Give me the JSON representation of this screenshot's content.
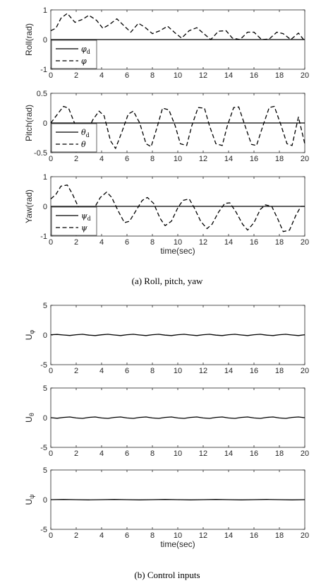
{
  "figure": {
    "caption_a": "(a)  Roll,  pitch,  yaw",
    "caption_b": "(b)  Control  inputs"
  },
  "chart_data": [
    {
      "type": "line",
      "id": "roll",
      "ylabel": "Roll(rad)",
      "xlabel": "",
      "xlim": [
        0,
        20
      ],
      "ylim": [
        -1,
        1
      ],
      "xticks": [
        "0",
        "2",
        "4",
        "6",
        "8",
        "10",
        "12",
        "14",
        "16",
        "18",
        "20"
      ],
      "yticks": [
        "-1",
        "0",
        "1"
      ],
      "legend": {
        "position": "lower-left",
        "entries": [
          "φd",
          "φ"
        ]
      },
      "series": [
        {
          "name": "φd",
          "style": "solid",
          "x": [
            0,
            20
          ],
          "y": [
            0,
            0
          ]
        },
        {
          "name": "φ",
          "style": "dashed",
          "x": [
            0,
            0.4,
            0.8,
            1.3,
            1.9,
            2.5,
            3.0,
            3.6,
            4.1,
            4.6,
            5.2,
            5.8,
            6.3,
            6.9,
            7.4,
            8.0,
            8.6,
            9.2,
            9.8,
            10.3,
            10.9,
            11.5,
            12.1,
            12.6,
            13.2,
            13.8,
            14.3,
            14.9,
            15.5,
            16.0,
            16.6,
            17.2,
            17.8,
            18.3,
            18.9,
            19.5,
            20.0
          ],
          "y": [
            0.3,
            0.38,
            0.72,
            0.88,
            0.58,
            0.68,
            0.82,
            0.65,
            0.38,
            0.5,
            0.7,
            0.45,
            0.25,
            0.55,
            0.42,
            0.2,
            0.3,
            0.45,
            0.22,
            0.05,
            0.3,
            0.4,
            0.18,
            0.0,
            0.28,
            0.3,
            0.05,
            0.0,
            0.25,
            0.25,
            0.0,
            0.02,
            0.25,
            0.2,
            0.0,
            0.22,
            -0.05
          ]
        }
      ]
    },
    {
      "type": "line",
      "id": "pitch",
      "ylabel": "Pitch(rad)",
      "xlabel": "",
      "xlim": [
        0,
        20
      ],
      "ylim": [
        -0.5,
        0.5
      ],
      "xticks": [
        "0",
        "2",
        "4",
        "6",
        "8",
        "10",
        "12",
        "14",
        "16",
        "18",
        "20"
      ],
      "yticks": [
        "-0.5",
        "0",
        "0.5"
      ],
      "legend": {
        "position": "lower-left",
        "entries": [
          "θd",
          "θ"
        ]
      },
      "series": [
        {
          "name": "θd",
          "style": "solid",
          "x": [
            0,
            20
          ],
          "y": [
            0,
            0
          ]
        },
        {
          "name": "θ",
          "style": "dashed",
          "x": [
            0,
            0.5,
            1.0,
            1.4,
            1.9,
            2.3,
            2.8,
            3.3,
            3.8,
            4.2,
            4.7,
            5.1,
            5.6,
            6.1,
            6.5,
            7.0,
            7.5,
            7.9,
            8.4,
            8.8,
            9.3,
            9.8,
            10.2,
            10.7,
            11.1,
            11.6,
            12.1,
            12.5,
            13.0,
            13.5,
            13.9,
            14.4,
            14.8,
            15.3,
            15.8,
            16.2,
            16.7,
            17.2,
            17.6,
            18.1,
            18.6,
            19.0,
            19.5,
            20.0
          ],
          "y": [
            0,
            0.14,
            0.28,
            0.25,
            -0.02,
            -0.2,
            -0.18,
            0.05,
            0.2,
            0.12,
            -0.3,
            -0.43,
            -0.15,
            0.15,
            0.2,
            0.0,
            -0.35,
            -0.4,
            -0.05,
            0.25,
            0.22,
            -0.05,
            -0.35,
            -0.38,
            -0.05,
            0.26,
            0.25,
            -0.05,
            -0.35,
            -0.38,
            -0.05,
            0.26,
            0.27,
            -0.05,
            -0.36,
            -0.38,
            -0.05,
            0.26,
            0.28,
            -0.02,
            -0.35,
            -0.38,
            0.1,
            -0.35
          ]
        }
      ]
    },
    {
      "type": "line",
      "id": "yaw",
      "ylabel": "Yaw(rad)",
      "xlabel": "time(sec)",
      "xlim": [
        0,
        20
      ],
      "ylim": [
        -1,
        1
      ],
      "xticks": [
        "0",
        "2",
        "4",
        "6",
        "8",
        "10",
        "12",
        "14",
        "16",
        "18",
        "20"
      ],
      "yticks": [
        "-1",
        "0",
        "1"
      ],
      "legend": {
        "position": "lower-left",
        "entries": [
          "ψd",
          "ψ"
        ]
      },
      "series": [
        {
          "name": "ψd",
          "style": "solid",
          "x": [
            0,
            20
          ],
          "y": [
            0,
            0
          ]
        },
        {
          "name": "ψ",
          "style": "dashed",
          "x": [
            0,
            0.4,
            0.8,
            1.3,
            1.7,
            2.2,
            2.6,
            3.0,
            3.5,
            3.9,
            4.4,
            4.8,
            5.3,
            5.8,
            6.2,
            6.7,
            7.2,
            7.6,
            8.1,
            8.6,
            9.0,
            9.5,
            10.0,
            10.4,
            10.9,
            11.3,
            11.8,
            12.3,
            12.7,
            13.2,
            13.7,
            14.1,
            14.6,
            15.1,
            15.5,
            16.0,
            16.5,
            16.9,
            17.4,
            17.9,
            18.3,
            18.8,
            19.3,
            19.7,
            20.0
          ],
          "y": [
            0.25,
            0.4,
            0.68,
            0.72,
            0.42,
            -0.05,
            -0.45,
            -0.35,
            0.0,
            0.3,
            0.48,
            0.3,
            -0.15,
            -0.55,
            -0.5,
            -0.15,
            0.2,
            0.3,
            0.1,
            -0.4,
            -0.65,
            -0.5,
            -0.05,
            0.2,
            0.25,
            -0.05,
            -0.5,
            -0.75,
            -0.6,
            -0.2,
            0.1,
            0.12,
            -0.2,
            -0.6,
            -0.8,
            -0.55,
            -0.1,
            0.05,
            0.0,
            -0.45,
            -0.85,
            -0.8,
            -0.3,
            0.0,
            0.0
          ]
        }
      ]
    },
    {
      "type": "line",
      "id": "u_phi",
      "ylabel": "Uφ",
      "xlabel": "",
      "xlim": [
        0,
        20
      ],
      "ylim": [
        -5,
        5
      ],
      "xticks": [
        "0",
        "2",
        "4",
        "6",
        "8",
        "10",
        "12",
        "14",
        "16",
        "18",
        "20"
      ],
      "yticks": [
        "-5",
        "0",
        "5"
      ],
      "series": [
        {
          "style": "solid",
          "amplitude": 0.12,
          "period": 1.55,
          "x": [
            0,
            0.5,
            1.0,
            1.5,
            2.0,
            2.5,
            3.0,
            3.5,
            4.0,
            4.5,
            5.0,
            5.5,
            6.0,
            6.5,
            7.0,
            7.5,
            8.0,
            8.5,
            9.0,
            9.5,
            10.0,
            10.5,
            11.0,
            11.5,
            12.0,
            12.5,
            13.0,
            13.5,
            14.0,
            14.5,
            15.0,
            15.5,
            16.0,
            16.5,
            17.0,
            17.5,
            18.0,
            18.5,
            19.0,
            19.5,
            20.0
          ],
          "y": [
            0.05,
            0.1,
            0.0,
            -0.08,
            0.05,
            0.12,
            -0.02,
            -0.1,
            0.04,
            0.12,
            0.0,
            -0.1,
            0.05,
            0.12,
            0.0,
            -0.1,
            0.05,
            0.12,
            -0.02,
            -0.1,
            0.05,
            0.12,
            0.0,
            -0.1,
            0.05,
            0.12,
            -0.02,
            -0.1,
            0.05,
            0.12,
            0.0,
            -0.1,
            0.05,
            0.12,
            -0.02,
            -0.1,
            0.05,
            0.12,
            0.0,
            -0.1,
            0.05
          ]
        }
      ]
    },
    {
      "type": "line",
      "id": "u_theta",
      "ylabel": "Uθ",
      "xlabel": "",
      "xlim": [
        0,
        20
      ],
      "ylim": [
        -5,
        5
      ],
      "xticks": [
        "0",
        "2",
        "4",
        "6",
        "8",
        "10",
        "12",
        "14",
        "16",
        "18",
        "20"
      ],
      "yticks": [
        "-5",
        "0",
        "5"
      ],
      "series": [
        {
          "style": "solid",
          "x": [
            0,
            0.5,
            1.0,
            1.5,
            2.0,
            2.5,
            3.0,
            3.5,
            4.0,
            4.5,
            5.0,
            5.5,
            6.0,
            6.5,
            7.0,
            7.5,
            8.0,
            8.5,
            9.0,
            9.5,
            10.0,
            10.5,
            11.0,
            11.5,
            12.0,
            12.5,
            13.0,
            13.5,
            14.0,
            14.5,
            15.0,
            15.5,
            16.0,
            16.5,
            17.0,
            17.5,
            18.0,
            18.5,
            19.0,
            19.5,
            20.0
          ],
          "y": [
            0.0,
            -0.1,
            0.05,
            0.12,
            -0.05,
            -0.12,
            0.05,
            0.12,
            -0.05,
            -0.12,
            0.05,
            0.12,
            -0.05,
            -0.12,
            0.05,
            0.12,
            -0.05,
            -0.12,
            0.05,
            0.12,
            -0.05,
            -0.12,
            0.05,
            0.12,
            -0.05,
            -0.12,
            0.05,
            0.12,
            -0.05,
            -0.12,
            0.05,
            0.12,
            -0.05,
            -0.12,
            0.05,
            0.12,
            -0.05,
            -0.12,
            0.05,
            0.12,
            0.0
          ]
        }
      ]
    },
    {
      "type": "line",
      "id": "u_psi",
      "ylabel": "Uψ",
      "xlabel": "time(sec)",
      "xlim": [
        0,
        20
      ],
      "ylim": [
        -5,
        5
      ],
      "xticks": [
        "0",
        "2",
        "4",
        "6",
        "8",
        "10",
        "12",
        "14",
        "16",
        "18",
        "20"
      ],
      "yticks": [
        "-5",
        "0",
        "5"
      ],
      "series": [
        {
          "style": "solid",
          "x": [
            0,
            1,
            2,
            3,
            4,
            5,
            6,
            7,
            8,
            9,
            10,
            11,
            12,
            13,
            14,
            15,
            16,
            17,
            18,
            19,
            20
          ],
          "y": [
            0.0,
            0.03,
            0.0,
            -0.03,
            0.0,
            0.03,
            0.0,
            -0.03,
            0.0,
            0.03,
            0.0,
            -0.03,
            0.0,
            0.03,
            0.0,
            -0.03,
            0.0,
            0.03,
            0.0,
            -0.03,
            0.0
          ]
        }
      ]
    }
  ]
}
